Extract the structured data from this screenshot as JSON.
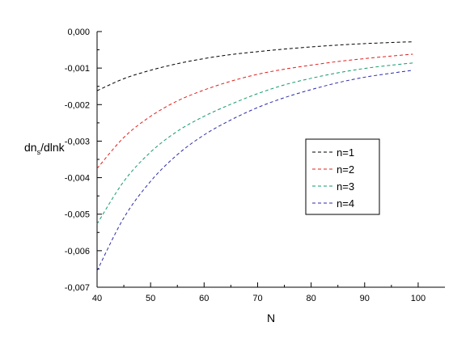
{
  "chart_data": {
    "type": "line",
    "title": "",
    "xlabel": "N",
    "ylabel": {
      "main": "dn",
      "sub": "s",
      "rest": "/dlnk"
    },
    "xlim": [
      40,
      105
    ],
    "ylim": [
      -0.007,
      0.0
    ],
    "x_ticks": [
      40,
      50,
      60,
      70,
      80,
      90,
      100
    ],
    "x_tick_labels": [
      "40",
      "50",
      "60",
      "70",
      "80",
      "90",
      "100"
    ],
    "y_ticks": [
      0.0,
      -0.001,
      -0.002,
      -0.003,
      -0.004,
      -0.005,
      -0.006,
      -0.007
    ],
    "y_tick_labels": [
      "0,000",
      "-0,001",
      "-0,002",
      "-0,003",
      "-0,004",
      "-0,005",
      "-0,006",
      "-0,007"
    ],
    "grid": false,
    "legend_position": "right",
    "x": [
      40,
      45,
      50,
      55,
      60,
      65,
      70,
      75,
      80,
      85,
      90,
      95,
      99
    ],
    "series": [
      {
        "name": "n=1",
        "color": "#000000",
        "values": [
          -0.00162,
          -0.00129,
          -0.00106,
          -0.00088,
          -0.00074,
          -0.00063,
          -0.00055,
          -0.00048,
          -0.00042,
          -0.00037,
          -0.00033,
          -0.0003,
          -0.00028
        ]
      },
      {
        "name": "n=2",
        "color": "#e0201e",
        "values": [
          -0.00375,
          -0.0029,
          -0.00232,
          -0.0019,
          -0.0016,
          -0.00136,
          -0.00117,
          -0.00103,
          -0.00092,
          -0.00082,
          -0.00074,
          -0.00067,
          -0.00062
        ]
      },
      {
        "name": "n=3",
        "color": "#159a6a",
        "values": [
          -0.00527,
          -0.0041,
          -0.0033,
          -0.00273,
          -0.00232,
          -0.00199,
          -0.0017,
          -0.00146,
          -0.00128,
          -0.00113,
          -0.00101,
          -0.00092,
          -0.00086
        ]
      },
      {
        "name": "n=4",
        "color": "#2c2ca8",
        "values": [
          -0.00655,
          -0.0051,
          -0.0041,
          -0.00337,
          -0.00283,
          -0.00242,
          -0.00208,
          -0.00181,
          -0.00159,
          -0.0014,
          -0.00125,
          -0.00114,
          -0.00106
        ]
      }
    ]
  }
}
